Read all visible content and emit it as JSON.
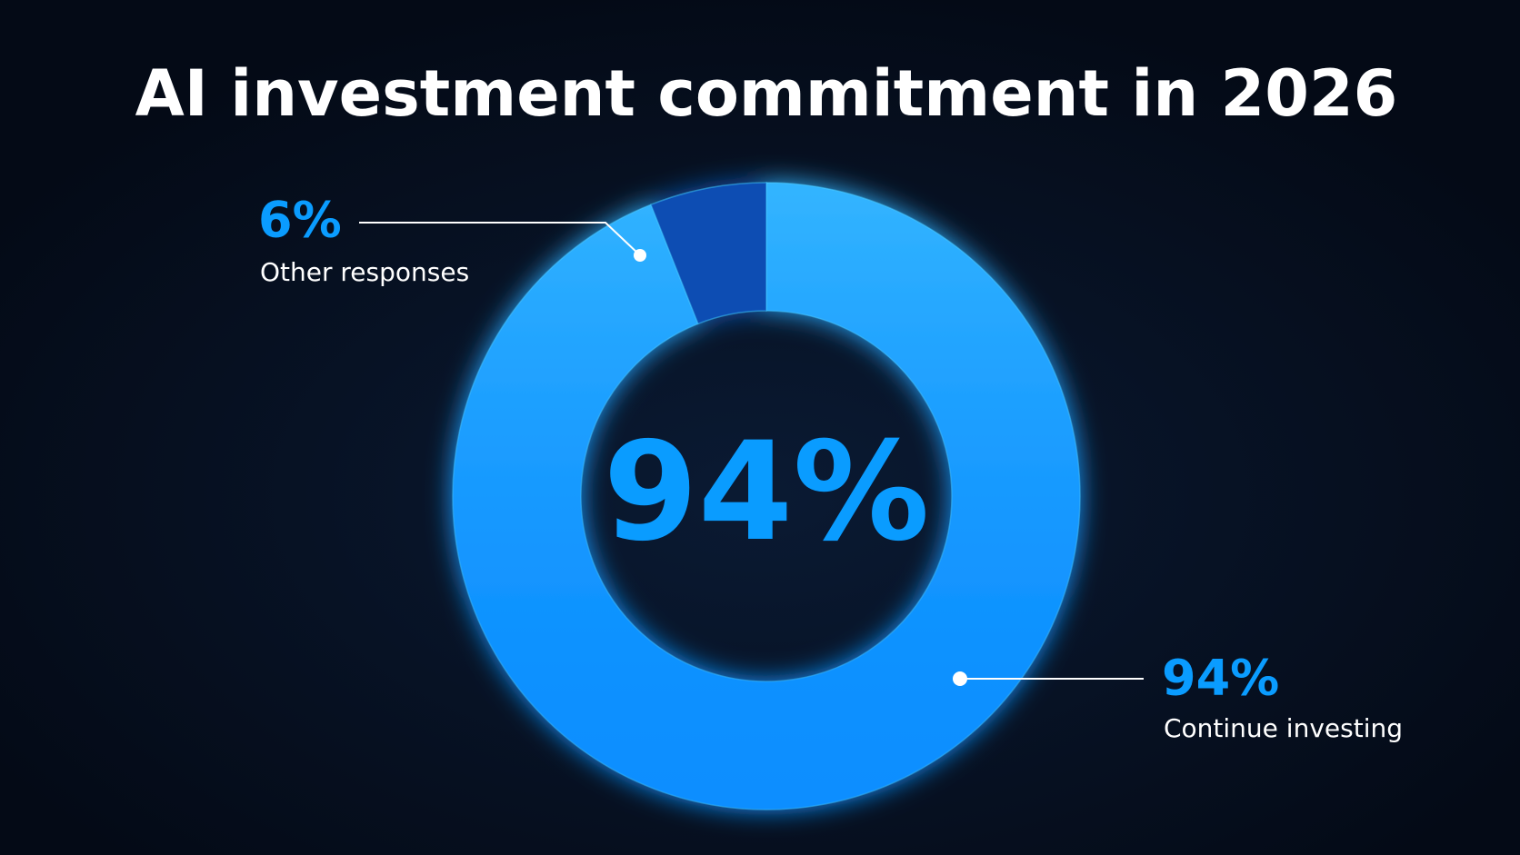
{
  "chart_data": {
    "type": "donut",
    "title": "AI investment commitment in 2026",
    "categories": [
      "Continue investing",
      "Other responses"
    ],
    "values": [
      94,
      6
    ],
    "value_labels": [
      "94%",
      "6%"
    ],
    "colors": [
      "#0a9cff",
      "#0b4db3"
    ]
  }
}
